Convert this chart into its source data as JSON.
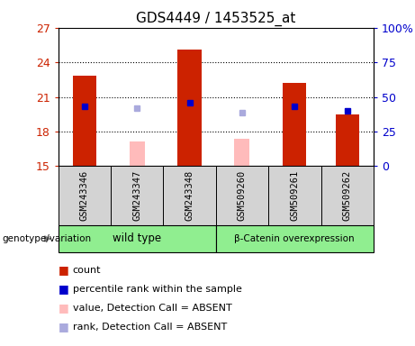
{
  "title": "GDS4449 / 1453525_at",
  "samples": [
    "GSM243346",
    "GSM243347",
    "GSM243348",
    "GSM509260",
    "GSM509261",
    "GSM509262"
  ],
  "ylim_left": [
    15,
    27
  ],
  "ylim_right": [
    0,
    100
  ],
  "yticks_left": [
    15,
    18,
    21,
    24,
    27
  ],
  "yticks_right": [
    0,
    25,
    50,
    75,
    100
  ],
  "ytick_labels_right": [
    "0",
    "25",
    "50",
    "75",
    "100%"
  ],
  "red_bars": {
    "GSM243346": [
      15,
      22.8
    ],
    "GSM243347": [
      15,
      15
    ],
    "GSM243348": [
      15,
      25.1
    ],
    "GSM509260": [
      15,
      15
    ],
    "GSM509261": [
      15,
      22.2
    ],
    "GSM509262": [
      15,
      19.5
    ]
  },
  "pink_bars": {
    "GSM243346": null,
    "GSM243347": [
      15,
      17.1
    ],
    "GSM243348": null,
    "GSM509260": [
      15,
      17.4
    ],
    "GSM509261": null,
    "GSM509262": null
  },
  "blue_squares": {
    "GSM243346": 20.2,
    "GSM243347": null,
    "GSM243348": 20.5,
    "GSM509260": null,
    "GSM509261": 20.2,
    "GSM509262": 19.8
  },
  "light_blue_squares": {
    "GSM243346": null,
    "GSM243347": 20.0,
    "GSM243348": null,
    "GSM509260": 19.6,
    "GSM509261": null,
    "GSM509262": null
  },
  "red_color": "#cc2200",
  "blue_color": "#0000cc",
  "pink_color": "#ffbbbb",
  "light_blue_color": "#aaaadd",
  "bar_width": 0.45,
  "background_label": "#d3d3d3",
  "background_group": "#90ee90",
  "grid_yticks": [
    18,
    21,
    24
  ],
  "wt_label": "wild type",
  "bc_label": "β-Catenin overexpression",
  "legend_items": [
    {
      "color": "#cc2200",
      "label": "count"
    },
    {
      "color": "#0000cc",
      "label": "percentile rank within the sample"
    },
    {
      "color": "#ffbbbb",
      "label": "value, Detection Call = ABSENT"
    },
    {
      "color": "#aaaadd",
      "label": "rank, Detection Call = ABSENT"
    }
  ],
  "genotype_label": "genotype/variation"
}
